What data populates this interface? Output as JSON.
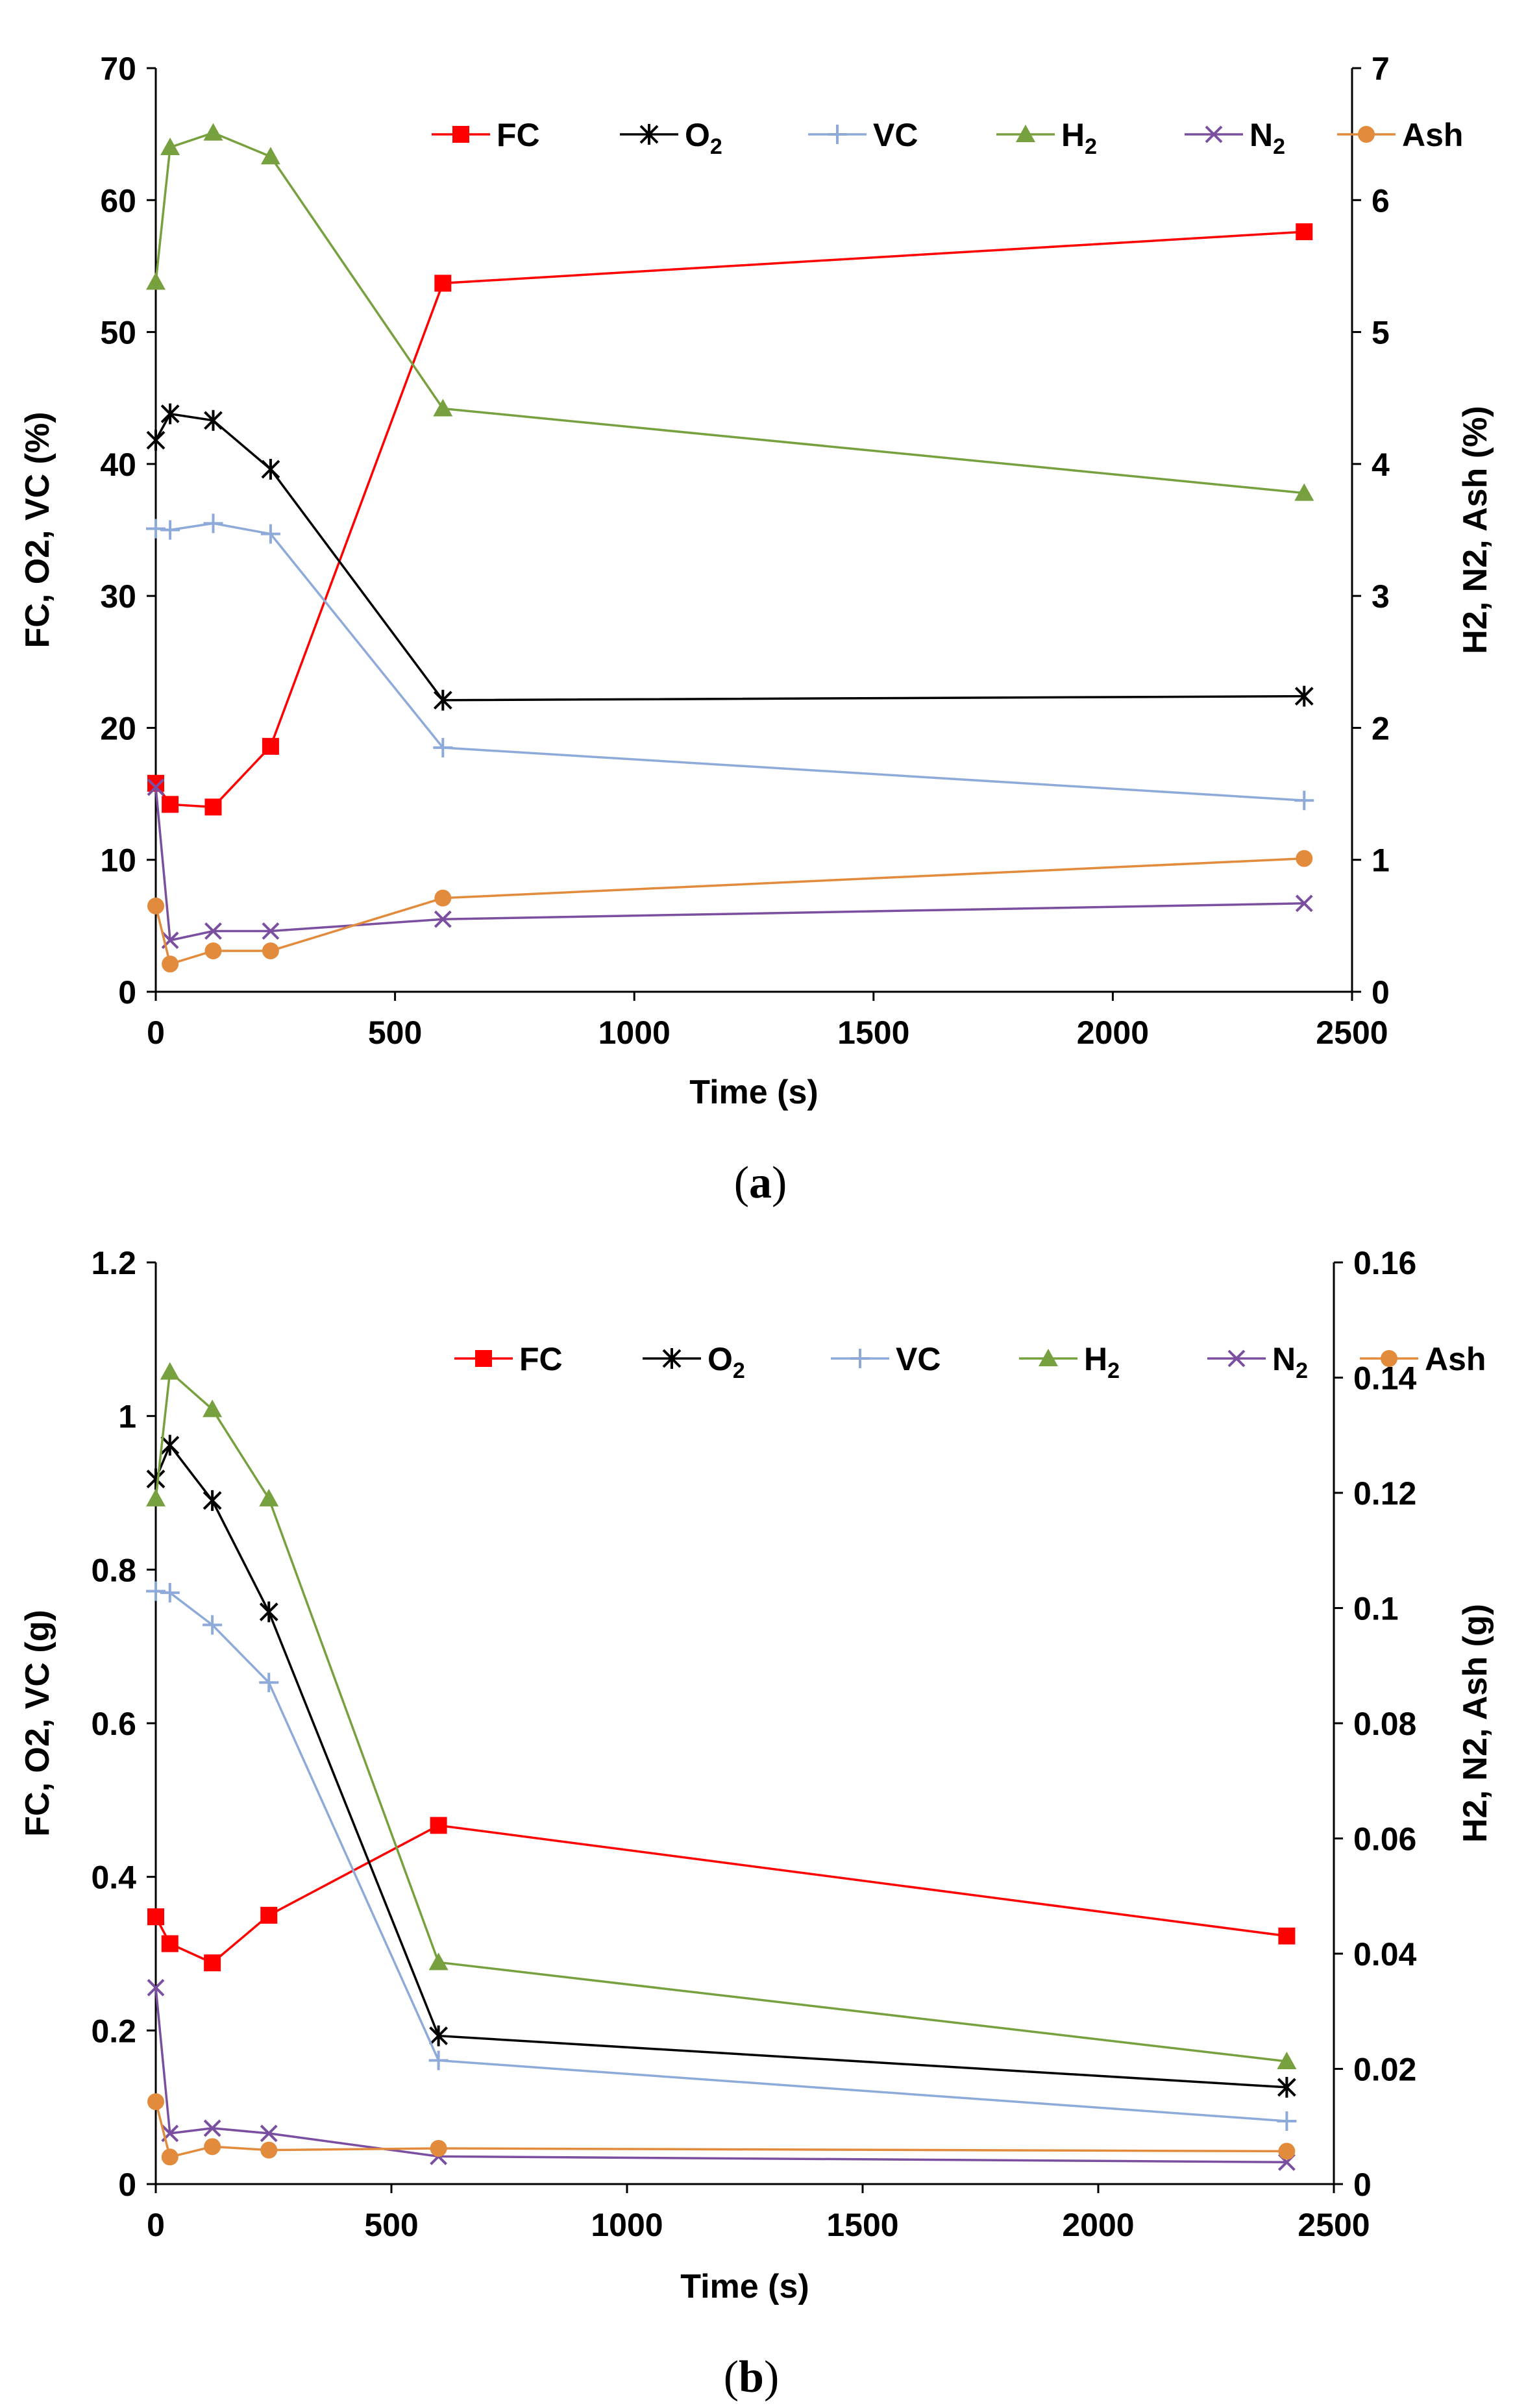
{
  "colors": {
    "FC": "#ff0000",
    "O2": "#000000",
    "VC": "#8eaad8",
    "H2": "#77a03e",
    "N2": "#7a4fa0",
    "Ash": "#e38b3c"
  },
  "chart_data": [
    {
      "type": "line",
      "caption": {
        "open": "(",
        "letter": "a",
        "close": ")"
      },
      "xlabel": "Time (s)",
      "ylabel": "FC, O2, VC (%)",
      "y2label": "H2, N2, Ash (%)",
      "xlim": [
        0,
        2500
      ],
      "ylim": [
        0,
        70
      ],
      "y2lim": [
        0,
        7
      ],
      "x_ticks": [
        "0",
        "500",
        "1000",
        "1500",
        "2000",
        "2500"
      ],
      "y_ticks": [
        "0",
        "10",
        "20",
        "30",
        "40",
        "50",
        "60",
        "70"
      ],
      "y2_ticks": [
        "0",
        "1",
        "2",
        "3",
        "4",
        "5",
        "6",
        "7"
      ],
      "legend_position": "top",
      "series": [
        {
          "name": "FC",
          "sub": "",
          "axis": "left",
          "marker": "square",
          "color_key": "FC",
          "x": [
            0,
            30,
            120,
            240,
            600,
            2400
          ],
          "y": [
            15.8,
            14.2,
            14.0,
            18.6,
            53.7,
            57.6
          ]
        },
        {
          "name": "O",
          "sub": "2",
          "axis": "left",
          "marker": "star",
          "color_key": "O2",
          "x": [
            0,
            30,
            120,
            240,
            600,
            2400
          ],
          "y": [
            41.8,
            43.8,
            43.3,
            39.6,
            22.1,
            22.4
          ]
        },
        {
          "name": "VC",
          "sub": "",
          "axis": "left",
          "marker": "plus",
          "color_key": "VC",
          "x": [
            0,
            30,
            120,
            240,
            600,
            2400
          ],
          "y": [
            35.1,
            35.0,
            35.5,
            34.7,
            18.5,
            14.5
          ]
        },
        {
          "name": "H",
          "sub": "2",
          "axis": "right",
          "marker": "triangle",
          "color_key": "H2",
          "x": [
            0,
            30,
            120,
            240,
            600,
            2400
          ],
          "y": [
            5.38,
            6.4,
            6.51,
            6.33,
            4.42,
            3.78
          ]
        },
        {
          "name": "N",
          "sub": "2",
          "axis": "right",
          "marker": "x",
          "color_key": "N2",
          "x": [
            0,
            30,
            120,
            240,
            600,
            2400
          ],
          "y": [
            1.55,
            0.39,
            0.46,
            0.46,
            0.55,
            0.67
          ]
        },
        {
          "name": "Ash",
          "sub": "",
          "axis": "right",
          "marker": "circle",
          "color_key": "Ash",
          "x": [
            0,
            30,
            120,
            240,
            600,
            2400
          ],
          "y": [
            0.65,
            0.21,
            0.31,
            0.31,
            0.71,
            1.01
          ]
        }
      ]
    },
    {
      "type": "line",
      "caption": {
        "open": "(",
        "letter": "b",
        "close": ")"
      },
      "xlabel": "Time (s)",
      "ylabel": "FC, O2, VC (g)",
      "y2label": "H2, N2, Ash (g)",
      "xlim": [
        0,
        2500
      ],
      "ylim": [
        0,
        1.2
      ],
      "y2lim": [
        0,
        0.16
      ],
      "x_ticks": [
        "0",
        "500",
        "1000",
        "1500",
        "2000",
        "2500"
      ],
      "y_ticks": [
        "0",
        "0.2",
        "0.4",
        "0.6",
        "0.8",
        "1",
        "1.2"
      ],
      "y2_ticks": [
        "0",
        "0.02",
        "0.04",
        "0.06",
        "0.08",
        "0.1",
        "0.12",
        "0.14",
        "0.16"
      ],
      "legend_position": "top-right",
      "series": [
        {
          "name": "FC",
          "sub": "",
          "axis": "left",
          "marker": "square",
          "color_key": "FC",
          "x": [
            0,
            30,
            120,
            240,
            600,
            2400
          ],
          "y": [
            0.348,
            0.313,
            0.288,
            0.35,
            0.467,
            0.323
          ]
        },
        {
          "name": "O",
          "sub": "2",
          "axis": "left",
          "marker": "star",
          "color_key": "O2",
          "x": [
            0,
            30,
            120,
            240,
            600,
            2400
          ],
          "y": [
            0.918,
            0.962,
            0.89,
            0.745,
            0.193,
            0.126
          ]
        },
        {
          "name": "VC",
          "sub": "",
          "axis": "left",
          "marker": "plus",
          "color_key": "VC",
          "x": [
            0,
            30,
            120,
            240,
            600,
            2400
          ],
          "y": [
            0.772,
            0.77,
            0.728,
            0.653,
            0.161,
            0.082
          ]
        },
        {
          "name": "H",
          "sub": "2",
          "axis": "right",
          "marker": "triangle",
          "color_key": "H2",
          "x": [
            0,
            30,
            120,
            240,
            600,
            2400
          ],
          "y": [
            0.119,
            0.141,
            0.1345,
            0.119,
            0.0385,
            0.0213
          ]
        },
        {
          "name": "N",
          "sub": "2",
          "axis": "right",
          "marker": "x",
          "color_key": "N2",
          "x": [
            0,
            30,
            120,
            240,
            600,
            2400
          ],
          "y": [
            0.0341,
            0.0088,
            0.0097,
            0.0088,
            0.0048,
            0.0038
          ]
        },
        {
          "name": "Ash",
          "sub": "",
          "axis": "right",
          "marker": "circle",
          "color_key": "Ash",
          "x": [
            0,
            30,
            120,
            240,
            600,
            2400
          ],
          "y": [
            0.0143,
            0.0047,
            0.0065,
            0.0059,
            0.0062,
            0.0057
          ]
        }
      ]
    }
  ]
}
